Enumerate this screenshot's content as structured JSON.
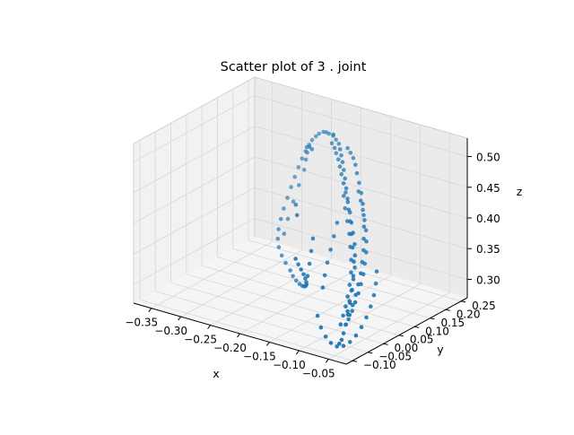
{
  "chart_data": {
    "type": "scatter",
    "title": "Scatter plot of 3 . joint",
    "projection": "3d",
    "xlabel": "x",
    "ylabel": "y",
    "zlabel": "z",
    "xlim": [
      -0.38,
      -0.02
    ],
    "ylim": [
      -0.12,
      0.27
    ],
    "zlim": [
      0.27,
      0.53
    ],
    "xticks": [
      -0.35,
      -0.3,
      -0.25,
      -0.2,
      -0.15,
      -0.1,
      -0.05
    ],
    "yticks": [
      -0.1,
      -0.05,
      0.0,
      0.05,
      0.1,
      0.15,
      0.2,
      0.25
    ],
    "zticks": [
      0.3,
      0.35,
      0.4,
      0.45,
      0.5
    ],
    "xtick_labels": [
      "−0.35",
      "−0.30",
      "−0.25",
      "−0.20",
      "−0.15",
      "−0.10",
      "−0.05"
    ],
    "ytick_labels": [
      "−0.10",
      "−0.05",
      "0.00",
      "0.05",
      "0.10",
      "0.15",
      "0.20",
      "0.25"
    ],
    "ztick_labels": [
      "0.30",
      "0.35",
      "0.40",
      "0.45",
      "0.50"
    ],
    "grid": true,
    "marker_color": "#1f77b4",
    "points": [
      {
        "x": -0.205,
        "y": 0.19,
        "z": 0.505
      },
      {
        "x": -0.195,
        "y": 0.18,
        "z": 0.504
      },
      {
        "x": -0.21,
        "y": 0.2,
        "z": 0.503
      },
      {
        "x": -0.185,
        "y": 0.17,
        "z": 0.503
      },
      {
        "x": -0.22,
        "y": 0.205,
        "z": 0.5
      },
      {
        "x": -0.175,
        "y": 0.155,
        "z": 0.501
      },
      {
        "x": -0.23,
        "y": 0.215,
        "z": 0.497
      },
      {
        "x": -0.165,
        "y": 0.14,
        "z": 0.498
      },
      {
        "x": -0.24,
        "y": 0.225,
        "z": 0.492
      },
      {
        "x": -0.155,
        "y": 0.125,
        "z": 0.494
      },
      {
        "x": -0.25,
        "y": 0.23,
        "z": 0.485
      },
      {
        "x": -0.145,
        "y": 0.11,
        "z": 0.488
      },
      {
        "x": -0.258,
        "y": 0.235,
        "z": 0.477
      },
      {
        "x": -0.135,
        "y": 0.095,
        "z": 0.481
      },
      {
        "x": -0.266,
        "y": 0.238,
        "z": 0.468
      },
      {
        "x": -0.125,
        "y": 0.08,
        "z": 0.472
      },
      {
        "x": -0.272,
        "y": 0.24,
        "z": 0.458
      },
      {
        "x": -0.115,
        "y": 0.065,
        "z": 0.462
      },
      {
        "x": -0.278,
        "y": 0.24,
        "z": 0.446
      },
      {
        "x": -0.105,
        "y": 0.05,
        "z": 0.451
      },
      {
        "x": -0.283,
        "y": 0.238,
        "z": 0.433
      },
      {
        "x": -0.095,
        "y": 0.035,
        "z": 0.439
      },
      {
        "x": -0.287,
        "y": 0.234,
        "z": 0.419
      },
      {
        "x": -0.085,
        "y": 0.02,
        "z": 0.425
      },
      {
        "x": -0.29,
        "y": 0.228,
        "z": 0.404
      },
      {
        "x": -0.075,
        "y": 0.005,
        "z": 0.41
      },
      {
        "x": -0.292,
        "y": 0.22,
        "z": 0.389
      },
      {
        "x": -0.065,
        "y": -0.01,
        "z": 0.394
      },
      {
        "x": -0.293,
        "y": 0.21,
        "z": 0.374
      },
      {
        "x": -0.058,
        "y": -0.025,
        "z": 0.377
      },
      {
        "x": -0.293,
        "y": 0.198,
        "z": 0.36
      },
      {
        "x": -0.052,
        "y": -0.04,
        "z": 0.36
      },
      {
        "x": -0.291,
        "y": 0.185,
        "z": 0.347
      },
      {
        "x": -0.048,
        "y": -0.055,
        "z": 0.344
      },
      {
        "x": -0.288,
        "y": 0.172,
        "z": 0.335
      },
      {
        "x": -0.046,
        "y": -0.065,
        "z": 0.328
      },
      {
        "x": -0.283,
        "y": 0.16,
        "z": 0.324
      },
      {
        "x": -0.046,
        "y": -0.072,
        "z": 0.314
      },
      {
        "x": -0.276,
        "y": 0.15,
        "z": 0.315
      },
      {
        "x": -0.048,
        "y": -0.075,
        "z": 0.3
      },
      {
        "x": -0.266,
        "y": 0.14,
        "z": 0.307
      },
      {
        "x": -0.052,
        "y": -0.074,
        "z": 0.288
      },
      {
        "x": -0.254,
        "y": 0.13,
        "z": 0.301
      },
      {
        "x": -0.058,
        "y": -0.07,
        "z": 0.279
      },
      {
        "x": -0.24,
        "y": 0.118,
        "z": 0.296
      },
      {
        "x": -0.228,
        "y": 0.104,
        "z": 0.294
      },
      {
        "x": -0.215,
        "y": 0.09,
        "z": 0.294
      },
      {
        "x": -0.202,
        "y": 0.076,
        "z": 0.296
      },
      {
        "x": -0.19,
        "y": 0.062,
        "z": 0.3
      },
      {
        "x": -0.179,
        "y": 0.048,
        "z": 0.306
      },
      {
        "x": -0.17,
        "y": 0.035,
        "z": 0.313
      },
      {
        "x": -0.162,
        "y": 0.022,
        "z": 0.321
      },
      {
        "x": -0.156,
        "y": 0.01,
        "z": 0.33
      },
      {
        "x": -0.152,
        "y": -0.001,
        "z": 0.34
      },
      {
        "x": -0.15,
        "y": -0.01,
        "z": 0.35
      },
      {
        "x": -0.15,
        "y": -0.018,
        "z": 0.36
      },
      {
        "x": -0.151,
        "y": -0.025,
        "z": 0.37
      },
      {
        "x": -0.153,
        "y": -0.03,
        "z": 0.38
      },
      {
        "x": -0.14,
        "y": 0.1,
        "z": 0.45
      },
      {
        "x": -0.128,
        "y": 0.082,
        "z": 0.438
      },
      {
        "x": -0.116,
        "y": 0.066,
        "z": 0.425
      },
      {
        "x": -0.104,
        "y": 0.05,
        "z": 0.412
      },
      {
        "x": -0.094,
        "y": 0.034,
        "z": 0.398
      },
      {
        "x": -0.084,
        "y": 0.018,
        "z": 0.384
      },
      {
        "x": -0.076,
        "y": 0.002,
        "z": 0.37
      },
      {
        "x": -0.07,
        "y": -0.014,
        "z": 0.356
      },
      {
        "x": -0.066,
        "y": -0.028,
        "z": 0.342
      },
      {
        "x": -0.063,
        "y": -0.04,
        "z": 0.33
      },
      {
        "x": -0.062,
        "y": -0.05,
        "z": 0.318
      },
      {
        "x": -0.062,
        "y": -0.058,
        "z": 0.306
      },
      {
        "x": -0.2,
        "y": 0.176,
        "z": 0.498
      },
      {
        "x": -0.19,
        "y": 0.166,
        "z": 0.496
      },
      {
        "x": -0.18,
        "y": 0.152,
        "z": 0.494
      },
      {
        "x": -0.17,
        "y": 0.14,
        "z": 0.49
      },
      {
        "x": -0.16,
        "y": 0.126,
        "z": 0.485
      },
      {
        "x": -0.15,
        "y": 0.112,
        "z": 0.479
      },
      {
        "x": -0.138,
        "y": 0.096,
        "z": 0.472
      },
      {
        "x": -0.126,
        "y": 0.08,
        "z": 0.465
      },
      {
        "x": -0.114,
        "y": 0.064,
        "z": 0.457
      },
      {
        "x": -0.102,
        "y": 0.048,
        "z": 0.448
      },
      {
        "x": -0.092,
        "y": 0.034,
        "z": 0.438
      },
      {
        "x": -0.082,
        "y": 0.02,
        "z": 0.428
      },
      {
        "x": -0.072,
        "y": 0.006,
        "z": 0.416
      },
      {
        "x": -0.064,
        "y": -0.008,
        "z": 0.404
      },
      {
        "x": -0.057,
        "y": -0.022,
        "z": 0.39
      },
      {
        "x": -0.052,
        "y": -0.036,
        "z": 0.376
      },
      {
        "x": -0.049,
        "y": -0.048,
        "z": 0.362
      },
      {
        "x": -0.047,
        "y": -0.058,
        "z": 0.348
      },
      {
        "x": -0.046,
        "y": -0.066,
        "z": 0.334
      },
      {
        "x": -0.12,
        "y": 0.11,
        "z": 0.46
      },
      {
        "x": -0.11,
        "y": 0.098,
        "z": 0.451
      },
      {
        "x": -0.1,
        "y": 0.086,
        "z": 0.442
      },
      {
        "x": -0.09,
        "y": 0.072,
        "z": 0.432
      },
      {
        "x": -0.08,
        "y": 0.058,
        "z": 0.422
      },
      {
        "x": -0.072,
        "y": 0.044,
        "z": 0.41
      },
      {
        "x": -0.065,
        "y": 0.03,
        "z": 0.398
      },
      {
        "x": -0.06,
        "y": 0.016,
        "z": 0.385
      },
      {
        "x": -0.056,
        "y": 0.004,
        "z": 0.372
      },
      {
        "x": -0.054,
        "y": -0.008,
        "z": 0.36
      },
      {
        "x": -0.053,
        "y": -0.018,
        "z": 0.348
      },
      {
        "x": -0.053,
        "y": -0.028,
        "z": 0.336
      },
      {
        "x": -0.054,
        "y": -0.036,
        "z": 0.324
      },
      {
        "x": -0.056,
        "y": -0.044,
        "z": 0.312
      },
      {
        "x": -0.13,
        "y": 0.06,
        "z": 0.42
      },
      {
        "x": -0.125,
        "y": 0.04,
        "z": 0.405
      },
      {
        "x": -0.12,
        "y": 0.02,
        "z": 0.39
      },
      {
        "x": -0.116,
        "y": 0.002,
        "z": 0.375
      },
      {
        "x": -0.112,
        "y": -0.014,
        "z": 0.36
      },
      {
        "x": -0.108,
        "y": -0.028,
        "z": 0.345
      },
      {
        "x": -0.1,
        "y": -0.06,
        "z": 0.31
      },
      {
        "x": -0.09,
        "y": -0.068,
        "z": 0.296
      },
      {
        "x": -0.08,
        "y": -0.072,
        "z": 0.285
      },
      {
        "x": -0.07,
        "y": -0.074,
        "z": 0.278
      },
      {
        "x": -0.06,
        "y": -0.074,
        "z": 0.275
      },
      {
        "x": -0.05,
        "y": -0.072,
        "z": 0.278
      },
      {
        "x": -0.042,
        "y": -0.066,
        "z": 0.285
      },
      {
        "x": -0.036,
        "y": -0.058,
        "z": 0.295
      },
      {
        "x": -0.032,
        "y": -0.048,
        "z": 0.307
      },
      {
        "x": -0.03,
        "y": -0.036,
        "z": 0.32
      },
      {
        "x": -0.03,
        "y": -0.022,
        "z": 0.334
      },
      {
        "x": -0.032,
        "y": -0.008,
        "z": 0.348
      },
      {
        "x": -0.036,
        "y": 0.006,
        "z": 0.362
      },
      {
        "x": -0.042,
        "y": 0.02,
        "z": 0.376
      },
      {
        "x": -0.22,
        "y": 0.15,
        "z": 0.49
      },
      {
        "x": -0.24,
        "y": 0.18,
        "z": 0.48
      },
      {
        "x": -0.255,
        "y": 0.2,
        "z": 0.47
      },
      {
        "x": -0.262,
        "y": 0.215,
        "z": 0.455
      },
      {
        "x": -0.268,
        "y": 0.222,
        "z": 0.44
      },
      {
        "x": -0.274,
        "y": 0.228,
        "z": 0.42
      },
      {
        "x": -0.28,
        "y": 0.222,
        "z": 0.395
      },
      {
        "x": -0.284,
        "y": 0.212,
        "z": 0.37
      },
      {
        "x": -0.286,
        "y": 0.198,
        "z": 0.345
      },
      {
        "x": -0.285,
        "y": 0.184,
        "z": 0.325
      },
      {
        "x": -0.17,
        "y": 0.17,
        "z": 0.5
      },
      {
        "x": -0.16,
        "y": 0.16,
        "z": 0.498
      },
      {
        "x": -0.15,
        "y": 0.15,
        "z": 0.495
      },
      {
        "x": -0.14,
        "y": 0.138,
        "z": 0.49
      },
      {
        "x": -0.13,
        "y": 0.124,
        "z": 0.483
      },
      {
        "x": -0.118,
        "y": 0.108,
        "z": 0.475
      },
      {
        "x": -0.106,
        "y": 0.092,
        "z": 0.466
      },
      {
        "x": -0.095,
        "y": 0.076,
        "z": 0.456
      },
      {
        "x": -0.085,
        "y": 0.06,
        "z": 0.445
      },
      {
        "x": -0.076,
        "y": 0.044,
        "z": 0.433
      },
      {
        "x": -0.068,
        "y": 0.028,
        "z": 0.42
      },
      {
        "x": -0.061,
        "y": 0.014,
        "z": 0.407
      },
      {
        "x": -0.056,
        "y": 0.0,
        "z": 0.393
      },
      {
        "x": -0.052,
        "y": -0.012,
        "z": 0.379
      },
      {
        "x": -0.05,
        "y": -0.024,
        "z": 0.365
      },
      {
        "x": -0.049,
        "y": -0.034,
        "z": 0.351
      },
      {
        "x": -0.049,
        "y": -0.044,
        "z": 0.337
      },
      {
        "x": -0.05,
        "y": -0.052,
        "z": 0.323
      },
      {
        "x": -0.052,
        "y": -0.06,
        "z": 0.309
      },
      {
        "x": -0.15,
        "y": 0.02,
        "z": 0.4
      },
      {
        "x": -0.145,
        "y": 0.005,
        "z": 0.385
      },
      {
        "x": -0.14,
        "y": -0.01,
        "z": 0.37
      },
      {
        "x": -0.136,
        "y": -0.024,
        "z": 0.355
      },
      {
        "x": -0.2,
        "y": 0.06,
        "z": 0.43
      },
      {
        "x": -0.19,
        "y": 0.045,
        "z": 0.42
      }
    ]
  }
}
